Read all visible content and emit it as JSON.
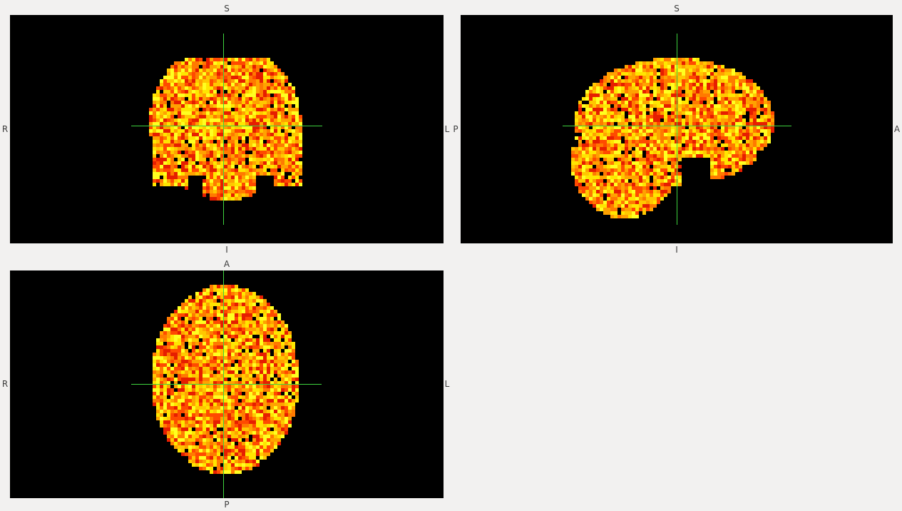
{
  "views": {
    "coronal": {
      "top": "S",
      "bottom": "I",
      "left": "R",
      "right": "L"
    },
    "sagittal": {
      "top": "S",
      "bottom": "I",
      "left": "P",
      "right": "A"
    },
    "axial": {
      "top": "A",
      "bottom": "P",
      "left": "R",
      "right": "L"
    }
  },
  "colors": {
    "background": "#f2f1f0",
    "viewport": "#000000",
    "crosshair": "#3fd43f",
    "colormap": [
      "#e61e00",
      "#ff4a00",
      "#ff7a00",
      "#ffa200",
      "#ffc800",
      "#ffe600",
      "#ffff20"
    ]
  },
  "colormap_name": "red-yellow"
}
